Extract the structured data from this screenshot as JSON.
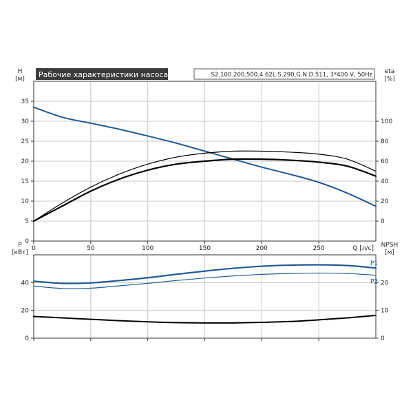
{
  "header": {
    "title": "Рабочие характеристики насоса",
    "model": "S2.100.200.500.4.62L.S.290.G.N.D.511, 3*400 V, 50Hz"
  },
  "colors": {
    "curve_blue": "#1f5a96",
    "curve_black": "#000000",
    "grid": "#c8c8c8",
    "title_bg": "#3c3c3c",
    "title_fg": "#ffffff"
  },
  "chart_data": [
    {
      "type": "line",
      "name": "head-efficiency",
      "grid": true,
      "xlim": [
        0,
        300
      ],
      "x_ticks": [
        0,
        50,
        100,
        150,
        200,
        250
      ],
      "xlabel": "Q [л/с]",
      "ylim": [
        0,
        40
      ],
      "y_ticks": [
        0,
        5,
        10,
        15,
        20,
        25,
        30,
        35
      ],
      "ylabel_left": [
        "H",
        "[м]"
      ],
      "y2lim": [
        -20,
        140
      ],
      "y2_ticks": [
        0,
        20,
        40,
        60,
        80,
        100
      ],
      "ylabel_right": [
        "eta",
        "[%]"
      ],
      "series": [
        {
          "key": "H",
          "axis": "left",
          "color": "#1f5a96",
          "width": 2,
          "x": [
            0,
            25,
            50,
            75,
            100,
            125,
            150,
            175,
            200,
            225,
            250,
            275,
            300
          ],
          "values": [
            33.5,
            31.0,
            29.5,
            28.0,
            26.3,
            24.5,
            22.5,
            20.5,
            18.5,
            16.7,
            14.7,
            12.0,
            8.7
          ]
        },
        {
          "key": "eta_upper",
          "axis": "right",
          "color": "#000000",
          "width": 1.2,
          "x": [
            0,
            25,
            50,
            75,
            100,
            125,
            150,
            175,
            200,
            225,
            250,
            275,
            300
          ],
          "values": [
            0,
            18,
            34,
            47,
            57,
            64,
            68,
            70,
            70,
            69,
            67,
            62,
            50
          ]
        },
        {
          "key": "eta_lower",
          "axis": "right",
          "color": "#000000",
          "width": 2.2,
          "x": [
            0,
            25,
            50,
            75,
            100,
            125,
            150,
            175,
            200,
            225,
            250,
            275,
            300
          ],
          "values": [
            0,
            15,
            30,
            42,
            51,
            57,
            60,
            62,
            62,
            61,
            59,
            55,
            45
          ]
        }
      ]
    },
    {
      "type": "line",
      "name": "power-npsh",
      "grid": true,
      "xlim": [
        0,
        300
      ],
      "x_ticks": [
        0,
        50,
        100,
        150,
        200,
        250
      ],
      "ylim": [
        0,
        60
      ],
      "y_ticks": [
        0,
        20,
        40
      ],
      "ylabel_left": [
        "P",
        "[кВт]"
      ],
      "y2lim": [
        0,
        30
      ],
      "y2_ticks": [
        0,
        10,
        20
      ],
      "ylabel_right": [
        "NPSH",
        "[м]"
      ],
      "series": [
        {
          "key": "P1",
          "name": "P1",
          "axis": "left",
          "color": "#1f5a96",
          "width": 2.2,
          "x": [
            0,
            25,
            50,
            75,
            100,
            125,
            150,
            175,
            200,
            225,
            250,
            275,
            300
          ],
          "values": [
            41,
            39.5,
            39.8,
            41.5,
            43.5,
            46,
            48.3,
            50.3,
            51.8,
            52.6,
            52.8,
            52.3,
            50.5
          ]
        },
        {
          "key": "P2",
          "name": "P2",
          "axis": "left",
          "color": "#1f5a96",
          "width": 1.2,
          "x": [
            0,
            25,
            50,
            75,
            100,
            125,
            150,
            175,
            200,
            225,
            250,
            275,
            300
          ],
          "values": [
            37.5,
            35.8,
            36,
            37.7,
            39.5,
            41.5,
            43.3,
            44.8,
            45.9,
            46.6,
            46.9,
            46.6,
            45.3
          ]
        },
        {
          "key": "NPSH",
          "axis": "right",
          "color": "#000000",
          "width": 2,
          "x": [
            0,
            25,
            50,
            75,
            100,
            125,
            150,
            175,
            200,
            225,
            250,
            275,
            300
          ],
          "values": [
            7.8,
            7.3,
            6.8,
            6.3,
            5.9,
            5.6,
            5.5,
            5.5,
            5.7,
            6.0,
            6.6,
            7.3,
            8.2
          ]
        }
      ]
    }
  ]
}
